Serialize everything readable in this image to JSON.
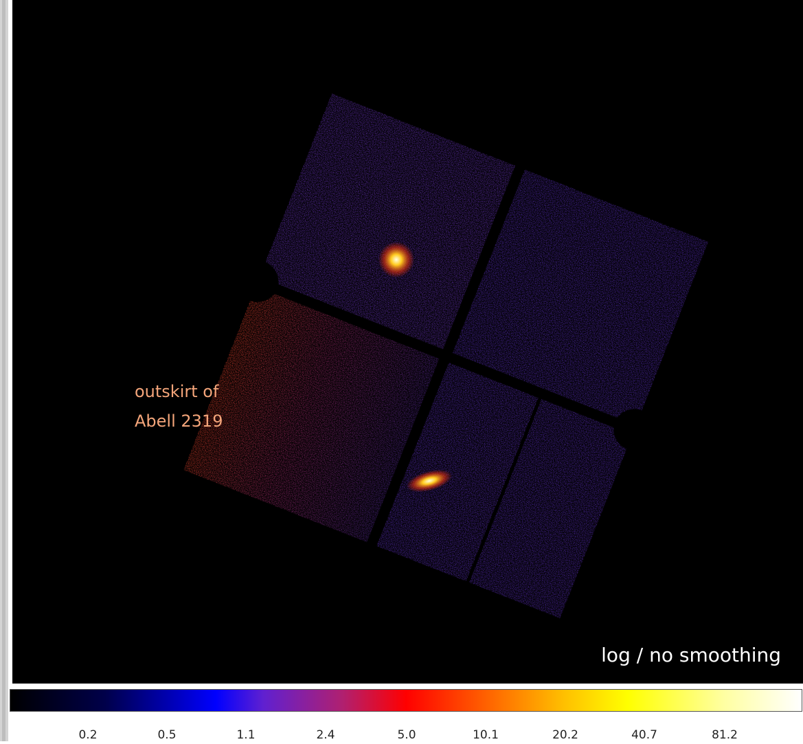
{
  "image": {
    "annotation": [
      "outskirt of",
      "Abell 2319"
    ],
    "scaling_note": "log / no smoothing"
  },
  "colorbar": {
    "ticks": [
      "0.2",
      "0.5",
      "1.1",
      "2.4",
      "5.0",
      "10.1",
      "20.2",
      "40.7",
      "81.2"
    ]
  }
}
